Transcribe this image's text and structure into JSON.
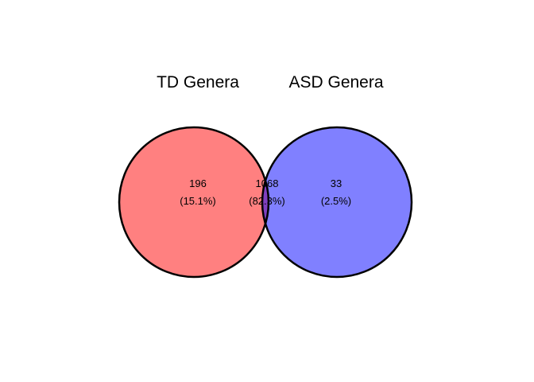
{
  "sets": [
    {
      "title": "TD Genera",
      "color": "#ff8080"
    },
    {
      "title": "ASD Genera",
      "color": "#8080ff"
    }
  ],
  "overlap_color": "#8040c0",
  "outline_color": "#000000",
  "regions": {
    "left_only": {
      "count": "196",
      "percent": "(15.1%)"
    },
    "overlap": {
      "count": "1068",
      "percent": "(82.3%)"
    },
    "right_only": {
      "count": "33",
      "percent": "(2.5%)"
    }
  }
}
